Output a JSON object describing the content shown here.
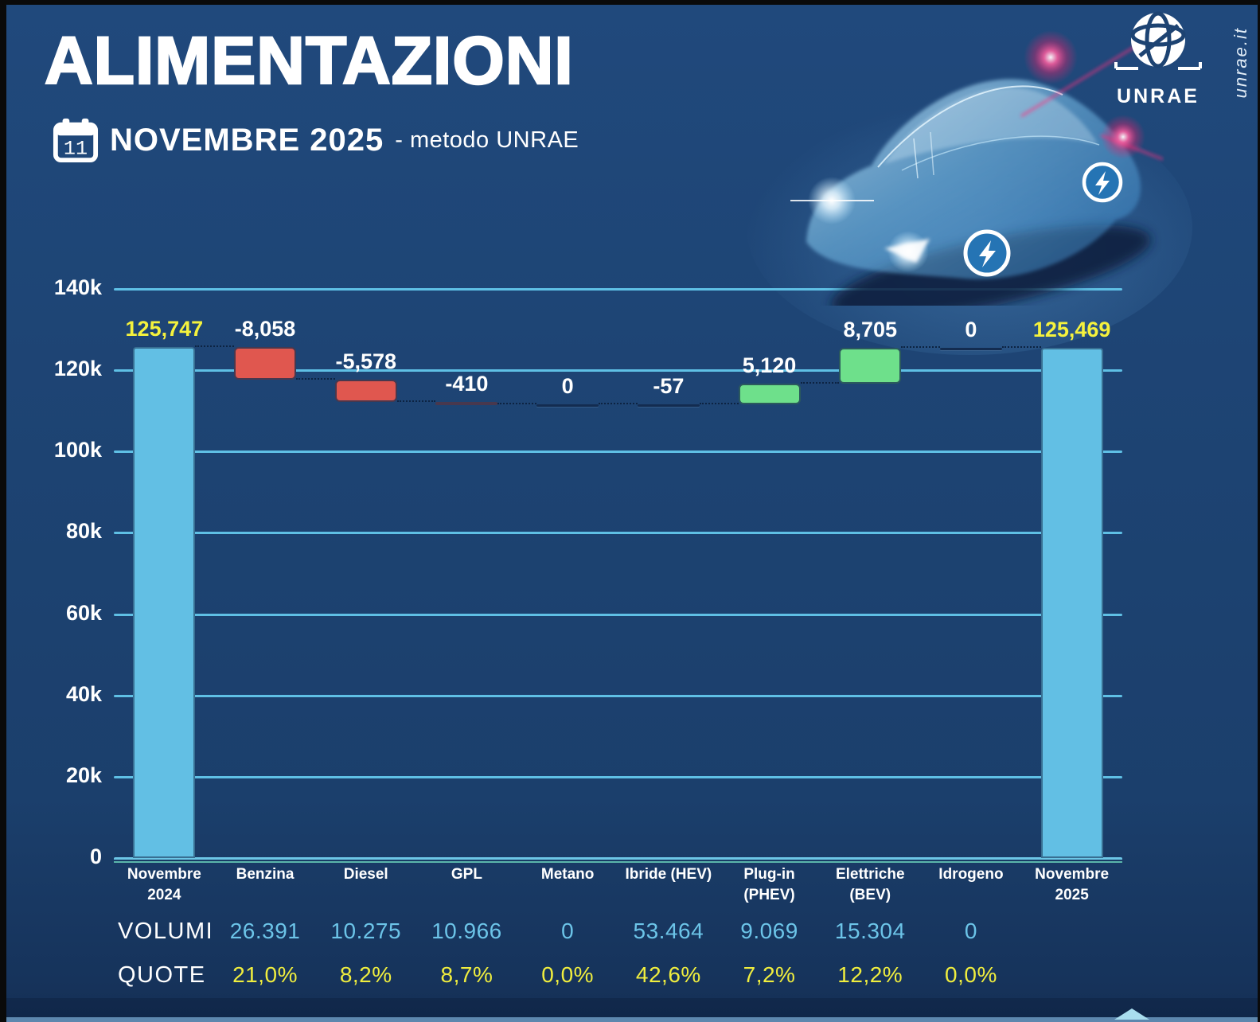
{
  "header": {
    "title": "ALIMENTAZIONI",
    "calendar_day": "11",
    "subtitle_month": "NOVEMBRE 2025",
    "subtitle_method": "- metodo UNRAE",
    "logo_text": "UNRAE",
    "site_url": "unrae.it"
  },
  "colors": {
    "background": "#1d4372",
    "bar_total": "#62bfe4",
    "bar_negative": "#e0574f",
    "bar_positive": "#6ee08b",
    "gridline": "#5fc0e5",
    "total_label": "#f5f23d",
    "delta_label": "#ffffff",
    "volumi_text": "#6cc4e8",
    "quote_text": "#f0ee3e"
  },
  "chart_data": {
    "type": "waterfall",
    "title": "ALIMENTAZIONI - Novembre 2025 - metodo UNRAE",
    "ylim": [
      0,
      140000
    ],
    "ytick_interval": 20000,
    "ytick_labels": [
      "0",
      "20k",
      "40k",
      "60k",
      "80k",
      "100k",
      "120k",
      "140k"
    ],
    "grid": true,
    "categories": [
      "Novembre 2024",
      "Benzina",
      "Diesel",
      "GPL",
      "Metano",
      "Ibride (HEV)",
      "Plug-in (PHEV)",
      "Elettriche (BEV)",
      "Idrogeno",
      "Novembre 2025"
    ],
    "bars": [
      {
        "label": "Novembre\n2024",
        "kind": "total",
        "value": 125747,
        "display": "125,747"
      },
      {
        "label": "Benzina",
        "kind": "delta",
        "value": -8058,
        "display": "-8,058"
      },
      {
        "label": "Diesel",
        "kind": "delta",
        "value": -5578,
        "display": "-5,578"
      },
      {
        "label": "GPL",
        "kind": "delta",
        "value": -410,
        "display": "-410"
      },
      {
        "label": "Metano",
        "kind": "delta",
        "value": 0,
        "display": "0"
      },
      {
        "label": "Ibride (HEV)",
        "kind": "delta",
        "value": -57,
        "display": "-57"
      },
      {
        "label": "Plug-in\n(PHEV)",
        "kind": "delta",
        "value": 5120,
        "display": "5,120"
      },
      {
        "label": "Elettriche\n(BEV)",
        "kind": "delta",
        "value": 8705,
        "display": "8,705"
      },
      {
        "label": "Idrogeno",
        "kind": "delta",
        "value": 0,
        "display": "0"
      },
      {
        "label": "Novembre\n2025",
        "kind": "total",
        "value": 125469,
        "display": "125,469"
      }
    ]
  },
  "table": {
    "volumi_label": "VOLUMI",
    "quote_label": "QUOTE",
    "volumi": [
      "26.391",
      "10.275",
      "10.966",
      "0",
      "53.464",
      "9.069",
      "15.304",
      "0"
    ],
    "quote": [
      "21,0%",
      "8,2%",
      "8,7%",
      "0,0%",
      "42,6%",
      "7,2%",
      "12,2%",
      "0,0%"
    ]
  }
}
